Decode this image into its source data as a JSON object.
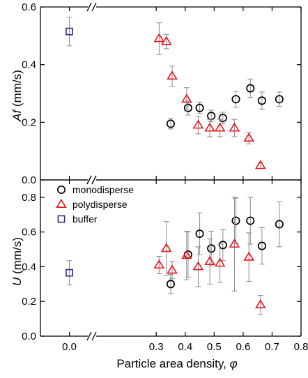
{
  "chart_data": [
    {
      "type": "scatter",
      "panel": "top",
      "ylabel": "Af (mm/s)",
      "ylabel_italic_part": "Af",
      "ylabel_unit_part": " (mm/s)",
      "ylim": [
        0,
        0.6
      ],
      "yticks": [
        0.0,
        0.2,
        0.4,
        0.6
      ],
      "ytick_labels": [
        "0.0",
        "0.2",
        "0.4",
        "0.6"
      ],
      "series": [
        {
          "name": "monodisperse",
          "marker": "circle",
          "color": "#000000",
          "points": [
            {
              "x": 0.35,
              "y": 0.195,
              "err": 0.018
            },
            {
              "x": 0.41,
              "y": 0.25,
              "err": 0.025
            },
            {
              "x": 0.45,
              "y": 0.25,
              "err": 0.02
            },
            {
              "x": 0.49,
              "y": 0.222,
              "err": 0.02
            },
            {
              "x": 0.53,
              "y": 0.215,
              "err": 0.02
            },
            {
              "x": 0.575,
              "y": 0.28,
              "err": 0.028
            },
            {
              "x": 0.625,
              "y": 0.318,
              "err": 0.032
            },
            {
              "x": 0.665,
              "y": 0.275,
              "err": 0.03
            },
            {
              "x": 0.725,
              "y": 0.28,
              "err": 0.025
            }
          ]
        },
        {
          "name": "polydisperse",
          "marker": "triangle",
          "color": "#e8141c",
          "points": [
            {
              "x": 0.31,
              "y": 0.49,
              "err": 0.055
            },
            {
              "x": 0.335,
              "y": 0.48,
              "err": 0.025
            },
            {
              "x": 0.355,
              "y": 0.36,
              "err": 0.035
            },
            {
              "x": 0.405,
              "y": 0.28,
              "err": 0.04
            },
            {
              "x": 0.445,
              "y": 0.19,
              "err": 0.03
            },
            {
              "x": 0.485,
              "y": 0.18,
              "err": 0.03
            },
            {
              "x": 0.52,
              "y": 0.18,
              "err": 0.03
            },
            {
              "x": 0.57,
              "y": 0.18,
              "err": 0.03
            },
            {
              "x": 0.62,
              "y": 0.145,
              "err": 0.02
            },
            {
              "x": 0.66,
              "y": 0.05,
              "err": 0.01
            }
          ]
        },
        {
          "name": "buffer",
          "marker": "square",
          "color": "#2b2a8f",
          "points": [
            {
              "x": 0.0,
              "y": 0.515,
              "err": 0.05
            }
          ]
        }
      ]
    },
    {
      "type": "scatter",
      "panel": "bottom",
      "ylabel": "U (mm/s)",
      "ylabel_italic_part": "U",
      "ylabel_unit_part": " (mm/s)",
      "xlabel": "Particle area density, φ",
      "xlabel_text_part": "Particle area density, ",
      "xlabel_symbol_part": "φ",
      "xlim": [
        -0.1,
        0.8
      ],
      "xticks": [
        0.0,
        0.3,
        0.4,
        0.5,
        0.6,
        0.7,
        0.8
      ],
      "xtick_labels": [
        "0.0",
        "0.3",
        "0.4",
        "0.5",
        "0.6",
        "0.7",
        "0.8"
      ],
      "ylim": [
        0,
        0.9
      ],
      "yticks": [
        0.0,
        0.2,
        0.4,
        0.6,
        0.8
      ],
      "ytick_labels": [
        "0.0",
        "0.2",
        "0.4",
        "0.6",
        "0.8"
      ],
      "axis_break": "//",
      "legend_position": "top-left",
      "legend": [
        "monodisperse",
        "polydisperse",
        "buffer"
      ],
      "series": [
        {
          "name": "monodisperse",
          "marker": "circle",
          "color": "#000000",
          "points": [
            {
              "x": 0.35,
              "y": 0.3,
              "err": 0.055
            },
            {
              "x": 0.41,
              "y": 0.47,
              "err": 0.13
            },
            {
              "x": 0.45,
              "y": 0.59,
              "err": 0.12
            },
            {
              "x": 0.49,
              "y": 0.505,
              "err": 0.1
            },
            {
              "x": 0.53,
              "y": 0.525,
              "err": 0.09
            },
            {
              "x": 0.575,
              "y": 0.665,
              "err": 0.13
            },
            {
              "x": 0.625,
              "y": 0.665,
              "err": 0.135
            },
            {
              "x": 0.665,
              "y": 0.52,
              "err": 0.105
            },
            {
              "x": 0.725,
              "y": 0.645,
              "err": 0.13
            }
          ]
        },
        {
          "name": "polydisperse",
          "marker": "triangle",
          "color": "#e8141c",
          "points": [
            {
              "x": 0.31,
              "y": 0.41,
              "err": 0.05
            },
            {
              "x": 0.335,
              "y": 0.505,
              "err": 0.155
            },
            {
              "x": 0.355,
              "y": 0.38,
              "err": 0.05
            },
            {
              "x": 0.405,
              "y": 0.465,
              "err": 0.14
            },
            {
              "x": 0.445,
              "y": 0.4,
              "err": 0.115
            },
            {
              "x": 0.485,
              "y": 0.43,
              "err": 0.13
            },
            {
              "x": 0.52,
              "y": 0.42,
              "err": 0.11
            },
            {
              "x": 0.57,
              "y": 0.53,
              "err": 0.27
            },
            {
              "x": 0.62,
              "y": 0.455,
              "err": 0.14
            },
            {
              "x": 0.66,
              "y": 0.18,
              "err": 0.055
            }
          ]
        },
        {
          "name": "buffer",
          "marker": "square",
          "color": "#2b2a8f",
          "points": [
            {
              "x": 0.0,
              "y": 0.365,
              "err": 0.07
            }
          ]
        }
      ]
    }
  ]
}
